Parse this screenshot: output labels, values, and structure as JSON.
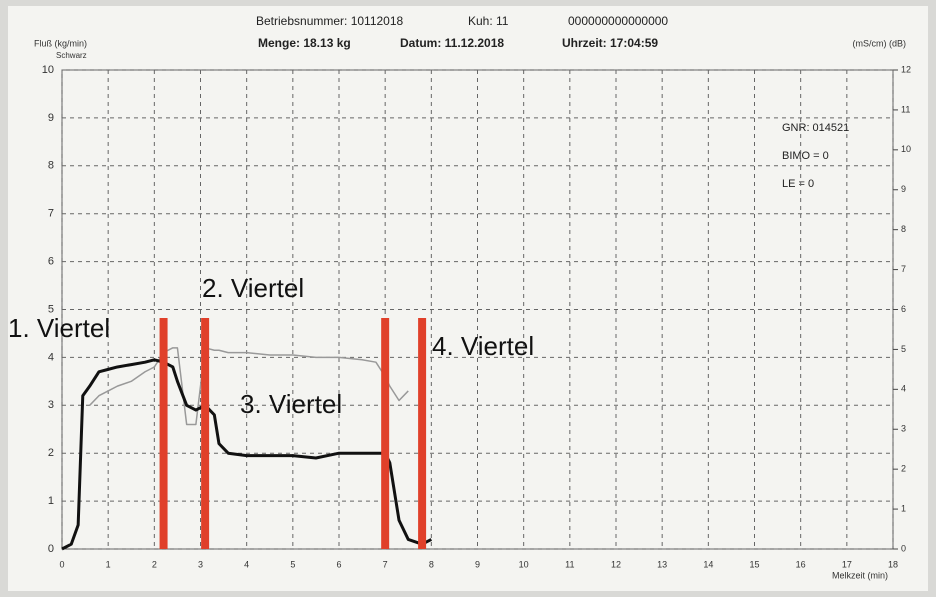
{
  "chart_data": {
    "type": "line",
    "header": [
      "Betriebsnummer: 10112018",
      "Kuh: 11",
      "000000000000000",
      "Menge: 18.13 kg",
      "Datum: 11.12.2018",
      "Uhrzeit: 17:04:59"
    ],
    "ylabel": "Fluß (kg/min)",
    "ylabel_sub": "Schwarz",
    "y2label": "(mS/cm) (dB)",
    "xlabel": "Melkzeit (min)",
    "info": [
      "GNR: 014521",
      "BIMO = 0",
      "LE = 0"
    ],
    "annotations": [
      "1. Viertel",
      "2. Viertel",
      "3. Viertel",
      "4. Viertel"
    ],
    "annotation_lines": [
      2.2,
      3.1,
      7.0,
      7.8
    ],
    "annotation_color": "#e0402a",
    "x": [
      0,
      0.2,
      0.35,
      0.45,
      0.6,
      0.8,
      1.0,
      1.2,
      1.5,
      1.8,
      2.0,
      2.2,
      2.4,
      2.5,
      2.7,
      2.9,
      3.1,
      3.3,
      3.4,
      3.6,
      4.0,
      4.5,
      5.0,
      5.5,
      6.0,
      6.5,
      6.8,
      7.0,
      7.1,
      7.3,
      7.5,
      7.8,
      8.0
    ],
    "series": [
      {
        "color": "#111111",
        "values": [
          0,
          0.1,
          0.5,
          3.2,
          3.4,
          3.7,
          3.75,
          3.8,
          3.85,
          3.9,
          3.95,
          3.9,
          3.8,
          3.5,
          3.0,
          2.9,
          3.0,
          2.8,
          2.2,
          2.0,
          1.95,
          1.95,
          1.95,
          1.9,
          2.0,
          2.0,
          2.0,
          2.0,
          1.8,
          0.6,
          0.2,
          0.1,
          0.2
        ]
      },
      {
        "color": "#999999",
        "values": [
          null,
          null,
          null,
          null,
          3.0,
          3.2,
          3.3,
          3.4,
          3.5,
          3.7,
          3.8,
          4.1,
          4.2,
          4.2,
          2.6,
          2.6,
          4.2,
          4.15,
          4.15,
          4.1,
          4.1,
          4.05,
          4.05,
          4.0,
          4.0,
          3.95,
          3.9,
          3.6,
          3.4,
          3.1,
          3.3,
          null,
          null
        ]
      }
    ],
    "xlim": [
      0,
      18
    ],
    "xticks": [
      0,
      1,
      2,
      3,
      4,
      5,
      6,
      7,
      8,
      9,
      10,
      11,
      12,
      13,
      14,
      15,
      16,
      17,
      18
    ],
    "ylim": [
      0,
      10
    ],
    "yticks": [
      0,
      1,
      2,
      3,
      4,
      5,
      6,
      7,
      8,
      9,
      10
    ],
    "y2lim": [
      0,
      12
    ],
    "y2ticks": [
      0,
      1,
      2,
      3,
      4,
      5,
      6,
      7,
      8,
      9,
      10,
      11,
      12
    ],
    "grid": true
  }
}
